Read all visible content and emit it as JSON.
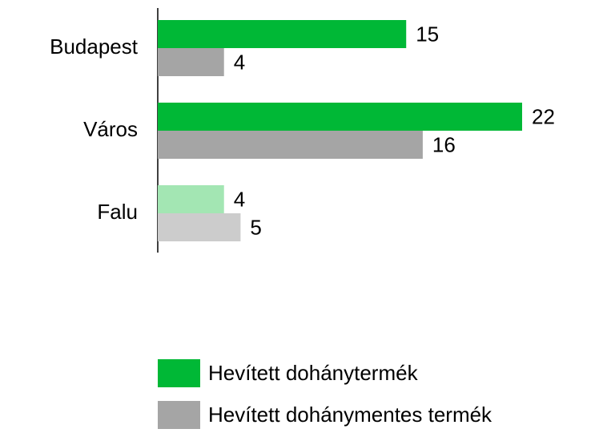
{
  "chart_data": {
    "type": "hbar",
    "categories": [
      "Budapest",
      "Város",
      "Falu"
    ],
    "series": [
      {
        "name": "Hevített dohánytermék",
        "color": "#00b836",
        "colors": [
          "#00b836",
          "#00b836",
          "#a3e6b3"
        ],
        "values": [
          15,
          22,
          4
        ]
      },
      {
        "name": "Hevített dohánymentes termék",
        "color": "#a5a5a5",
        "colors": [
          "#a5a5a5",
          "#a5a5a5",
          "#cccccc"
        ],
        "values": [
          4,
          16,
          5
        ]
      }
    ],
    "xlim": [
      0,
      22
    ]
  }
}
